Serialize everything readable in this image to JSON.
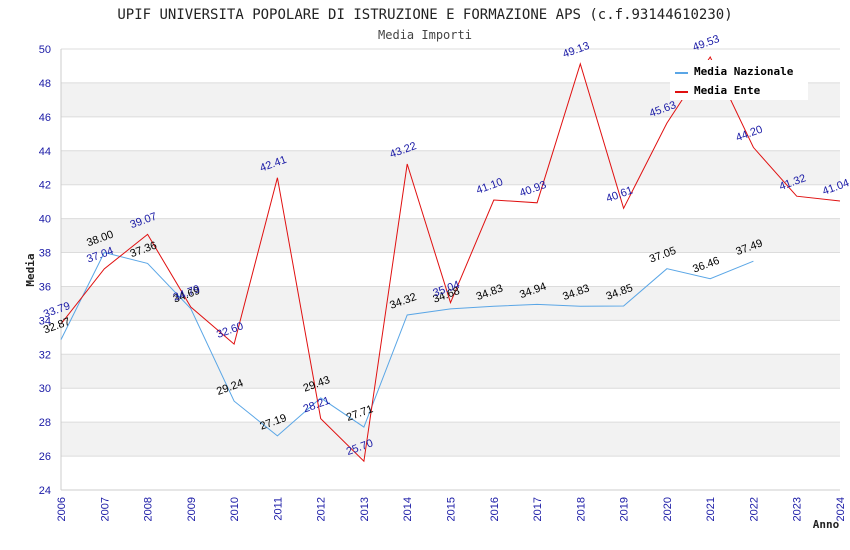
{
  "chart_data": {
    "type": "line",
    "title": "UPIF UNIVERSITA POPOLARE DI ISTRUZIONE E FORMAZIONE APS (c.f.93144610230)",
    "subtitle": "Media Importi",
    "xlabel": "Anno",
    "ylabel": "Media",
    "ylim": [
      24,
      50
    ],
    "yticks": [
      "24",
      "26",
      "28",
      "30",
      "32",
      "34",
      "36",
      "38",
      "40",
      "42",
      "44",
      "46",
      "48",
      "50"
    ],
    "x": [
      "2006",
      "2007",
      "2008",
      "2009",
      "2010",
      "2011",
      "2012",
      "2013",
      "2014",
      "2015",
      "2016",
      "2017",
      "2018",
      "2019",
      "2020",
      "2021",
      "2022",
      "2023",
      "2024"
    ],
    "legend_position": "top-right",
    "series": [
      {
        "name": "Media Nazionale",
        "color": "#5aa6e6",
        "label_color": "#000000",
        "values": [
          32.87,
          38.0,
          37.36,
          34.69,
          29.24,
          27.19,
          29.43,
          27.71,
          34.32,
          34.68,
          34.83,
          34.94,
          34.83,
          34.85,
          37.05,
          36.46,
          37.49,
          null,
          null
        ],
        "labels": [
          "32.87",
          "38.00",
          "37.36",
          "34.69",
          "29.24",
          "27.19",
          "29.43",
          "27.71",
          "34.32",
          "34.68",
          "34.83",
          "34.94",
          "34.83",
          "34.85",
          "37.05",
          "36.46",
          "37.49",
          null,
          null
        ]
      },
      {
        "name": "Media Ente",
        "color": "#e01010",
        "label_color": "#1a1aa6",
        "values": [
          33.79,
          37.04,
          39.07,
          34.79,
          32.6,
          42.41,
          28.21,
          25.7,
          43.22,
          35.04,
          41.1,
          40.93,
          49.13,
          40.61,
          45.63,
          49.53,
          44.2,
          41.32,
          41.04
        ],
        "labels": [
          "33.79",
          "37.04",
          "39.07",
          "34.79",
          "32.60",
          "42.41",
          "28.21",
          "25.70",
          "43.22",
          "35.04",
          "41.10",
          "40.93",
          "49.13",
          "40.61",
          "45.63",
          "49.53",
          "44.20",
          "41.32",
          "41.04"
        ]
      }
    ]
  }
}
